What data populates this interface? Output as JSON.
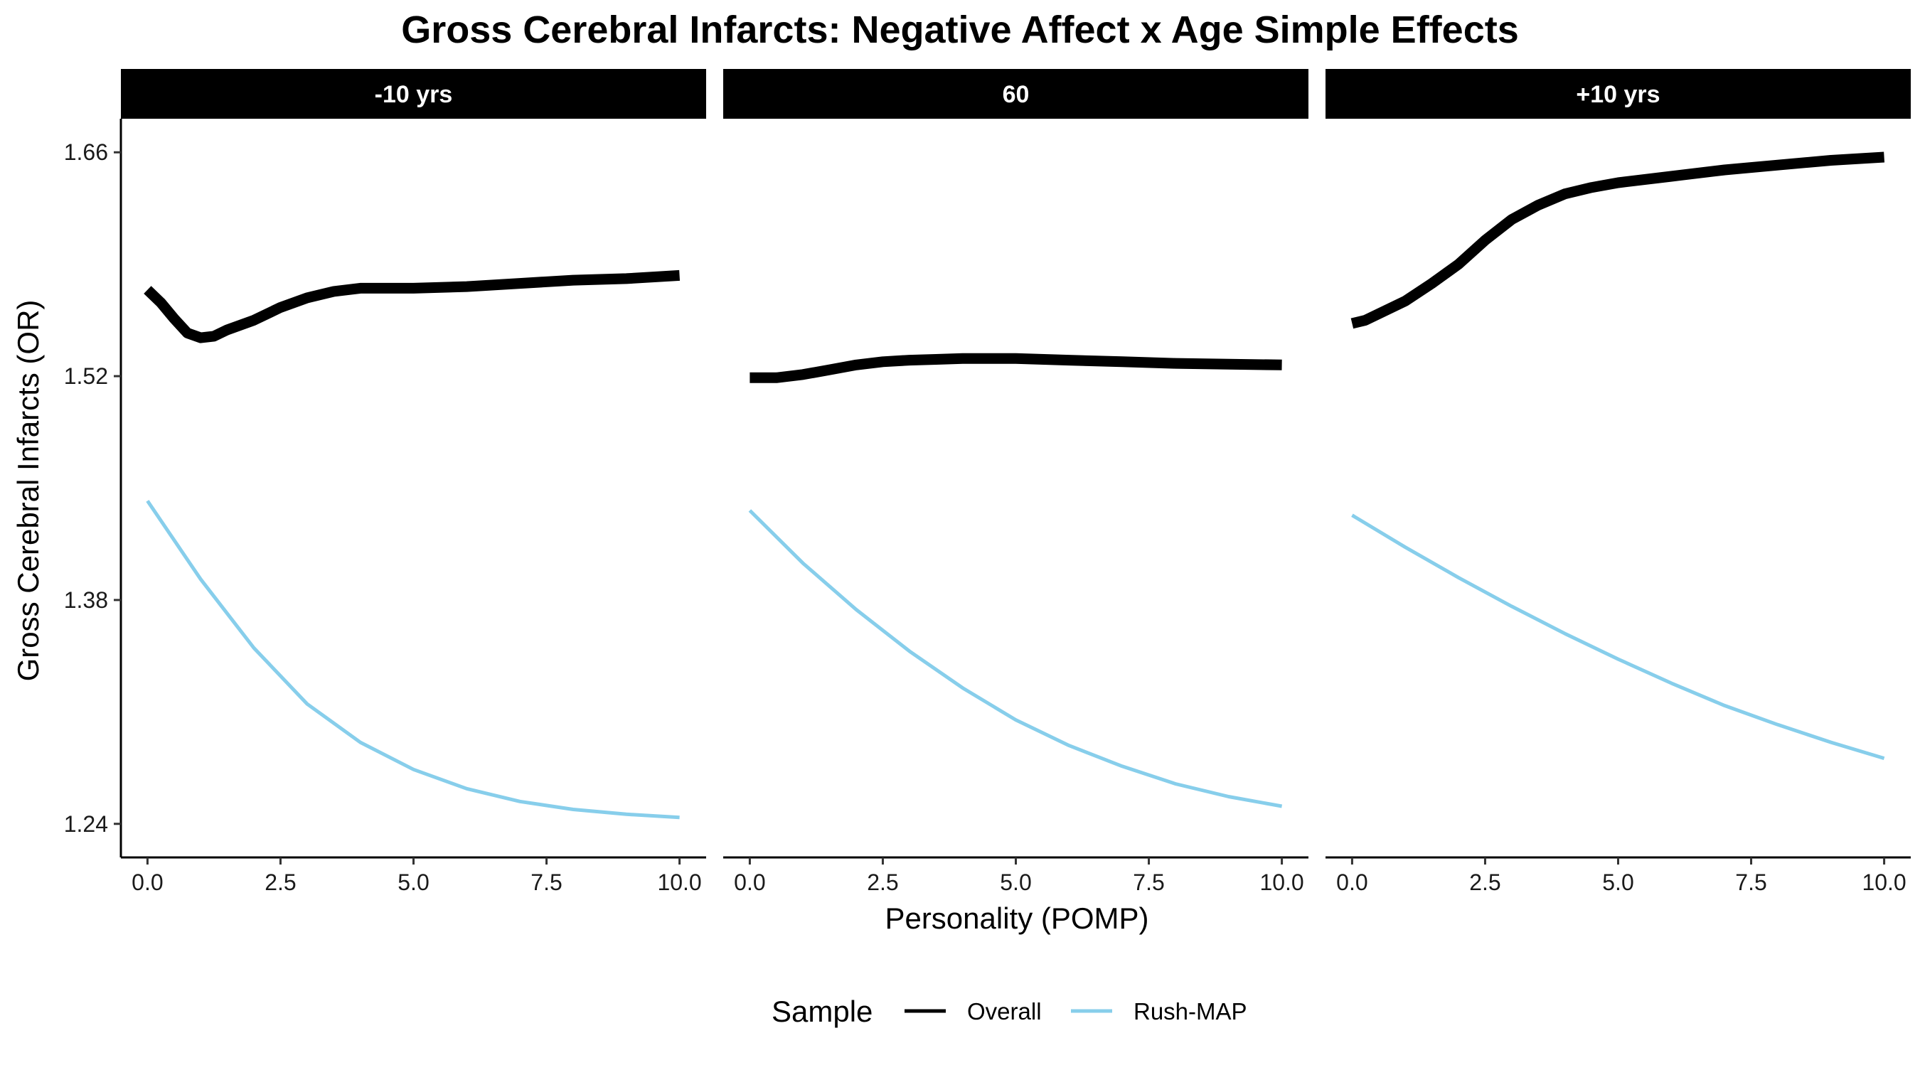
{
  "chart_data": {
    "type": "line",
    "title": "Gross Cerebral Infarcts: Negative Affect x Age Simple Effects",
    "xlabel": "Personality (POMP)",
    "ylabel": "Gross Cerebral Infarcts (OR)",
    "xlim": [
      -0.5,
      10.5
    ],
    "ylim": [
      1.219,
      1.681
    ],
    "x_ticks": [
      0,
      2.5,
      5,
      7.5,
      10
    ],
    "x_tick_labels": [
      "0.0",
      "2.5",
      "5.0",
      "7.5",
      "10.0"
    ],
    "y_ticks": [
      1.24,
      1.38,
      1.52,
      1.66
    ],
    "y_tick_labels": [
      "1.24",
      "1.38",
      "1.52",
      "1.66"
    ],
    "grid": false,
    "legend": {
      "title": "Sample",
      "position": "bottom",
      "entries": [
        {
          "label": "Overall",
          "color": "#000000"
        },
        {
          "label": "Rush-MAP",
          "color": "#87CEEB"
        }
      ]
    },
    "panels": [
      {
        "label": "-10 yrs",
        "series": [
          {
            "name": "Overall",
            "color": "#000000",
            "x": [
              0,
              0.25,
              0.5,
              0.75,
              1.0,
              1.25,
              1.5,
              2.0,
              2.5,
              3.0,
              3.5,
              4.0,
              4.5,
              5.0,
              6.0,
              7.0,
              8.0,
              9.0,
              10.0
            ],
            "y": [
              1.574,
              1.566,
              1.556,
              1.547,
              1.544,
              1.545,
              1.549,
              1.555,
              1.563,
              1.569,
              1.573,
              1.575,
              1.575,
              1.575,
              1.576,
              1.578,
              1.58,
              1.581,
              1.583
            ]
          },
          {
            "name": "Rush-MAP",
            "color": "#87CEEB",
            "x": [
              0,
              1,
              2,
              3,
              4,
              5,
              6,
              7,
              8,
              9,
              10
            ],
            "y": [
              1.442,
              1.393,
              1.35,
              1.315,
              1.291,
              1.274,
              1.262,
              1.254,
              1.249,
              1.246,
              1.244
            ]
          }
        ]
      },
      {
        "label": "60",
        "series": [
          {
            "name": "Overall",
            "color": "#000000",
            "x": [
              0,
              0.5,
              1.0,
              1.5,
              2.0,
              2.5,
              3.0,
              3.5,
              4.0,
              4.5,
              5.0,
              6.0,
              7.0,
              8.0,
              9.0,
              10.0
            ],
            "y": [
              1.519,
              1.519,
              1.521,
              1.524,
              1.527,
              1.529,
              1.53,
              1.5305,
              1.531,
              1.531,
              1.531,
              1.53,
              1.529,
              1.528,
              1.5275,
              1.527
            ]
          },
          {
            "name": "Rush-MAP",
            "color": "#87CEEB",
            "x": [
              0,
              1,
              2,
              3,
              4,
              5,
              6,
              7,
              8,
              9,
              10
            ],
            "y": [
              1.436,
              1.403,
              1.374,
              1.348,
              1.325,
              1.305,
              1.289,
              1.276,
              1.265,
              1.257,
              1.251
            ]
          }
        ]
      },
      {
        "label": "+10 yrs",
        "series": [
          {
            "name": "Overall",
            "color": "#000000",
            "x": [
              0,
              0.25,
              0.5,
              1.0,
              1.5,
              2.0,
              2.5,
              3.0,
              3.5,
              4.0,
              4.5,
              5.0,
              6.0,
              7.0,
              8.0,
              9.0,
              10.0
            ],
            "y": [
              1.553,
              1.555,
              1.559,
              1.567,
              1.578,
              1.59,
              1.605,
              1.618,
              1.627,
              1.634,
              1.638,
              1.641,
              1.645,
              1.649,
              1.652,
              1.655,
              1.657
            ]
          },
          {
            "name": "Rush-MAP",
            "color": "#87CEEB",
            "x": [
              0,
              1,
              2,
              3,
              4,
              5,
              6,
              7,
              8,
              9,
              10
            ],
            "y": [
              1.433,
              1.413,
              1.394,
              1.376,
              1.359,
              1.343,
              1.328,
              1.314,
              1.302,
              1.291,
              1.281
            ]
          }
        ]
      }
    ]
  }
}
